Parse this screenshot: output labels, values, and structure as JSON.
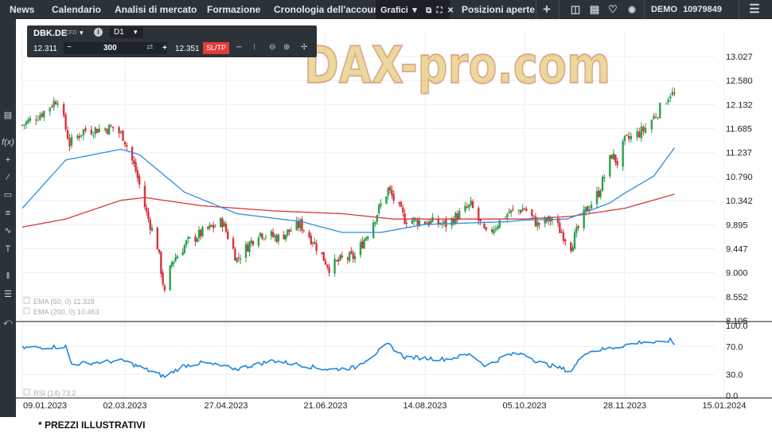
{
  "nav": {
    "tabs": [
      "News",
      "Calendario",
      "Analisi di mercato",
      "Formazione",
      "Cronologia dell'account",
      "Grafici",
      "Posizioni aperte"
    ],
    "active_tab": "Grafici",
    "account_mode": "DEMO",
    "account_number": "10979849"
  },
  "icons": {
    "tab_dropdown": "caret-down-icon",
    "tab_popout": "popout-icon",
    "tab_maximize": "maximize-icon",
    "tab_close": "close-icon",
    "add": "plus-icon",
    "layout": "layout-icon",
    "notebook": "book-icon",
    "notifications": "bell-icon",
    "connection": "wifi-icon",
    "menu": "hamburger-menu-icon"
  },
  "sidebar_tools": [
    "chart-type-icon",
    "function-icon",
    "crosshair-icon",
    "trendline-icon",
    "rectangle-icon",
    "fibonacci-icon",
    "brush-icon",
    "text-icon",
    "compare-icon",
    "layers-icon",
    "share-icon"
  ],
  "trade_panel": {
    "symbol": "DBK.DE",
    "instrument_type": "CFD",
    "timeframe": "D1",
    "bid": "12.311",
    "volume": "300",
    "ask": "12.351",
    "sltp_label": "SL/TP",
    "minus": "−",
    "plus": "+"
  },
  "watermark": "DAX-pro.com",
  "chart_data": {
    "type": "candlestick",
    "symbol": "DBK.DE",
    "timeframe": "D1",
    "y_ticks": [
      "13.027",
      "12.580",
      "12.132",
      "11.685",
      "11.237",
      "10.790",
      "10.342",
      "9.895",
      "9.447",
      "9.000",
      "8.552",
      "8.105"
    ],
    "ylim": [
      8.105,
      13.027
    ],
    "x_ticks": [
      "09.01.2023",
      "02.03.2023",
      "27.04.2023",
      "21.06.2023",
      "14.08.2023",
      "05.10.2023",
      "28.11.2023",
      "15.01.2024"
    ],
    "price_anchors": [
      {
        "date": "09.01.2023",
        "price": 11.75
      },
      {
        "date": "20.01.2023",
        "price": 12.0
      },
      {
        "date": "27.01.2023",
        "price": 12.25
      },
      {
        "date": "02.02.2023",
        "price": 11.4
      },
      {
        "date": "09.02.2023",
        "price": 11.65
      },
      {
        "date": "24.02.2023",
        "price": 11.7
      },
      {
        "date": "01.03.2023",
        "price": 11.55
      },
      {
        "date": "08.03.2023",
        "price": 10.9
      },
      {
        "date": "14.03.2023",
        "price": 10.1
      },
      {
        "date": "20.03.2023",
        "price": 9.5
      },
      {
        "date": "24.03.2023",
        "price": 8.6
      },
      {
        "date": "28.03.2023",
        "price": 9.2
      },
      {
        "date": "05.04.2023",
        "price": 9.55
      },
      {
        "date": "14.04.2023",
        "price": 9.75
      },
      {
        "date": "25.04.2023",
        "price": 9.95
      },
      {
        "date": "03.05.2023",
        "price": 9.25
      },
      {
        "date": "15.05.2023",
        "price": 9.75
      },
      {
        "date": "26.05.2023",
        "price": 9.65
      },
      {
        "date": "07.06.2023",
        "price": 9.9
      },
      {
        "date": "14.06.2023",
        "price": 9.6
      },
      {
        "date": "23.06.2023",
        "price": 9.1
      },
      {
        "date": "30.06.2023",
        "price": 9.25
      },
      {
        "date": "07.07.2023",
        "price": 9.3
      },
      {
        "date": "14.07.2023",
        "price": 9.75
      },
      {
        "date": "25.07.2023",
        "price": 10.55
      },
      {
        "date": "03.08.2023",
        "price": 10.0
      },
      {
        "date": "14.08.2023",
        "price": 9.95
      },
      {
        "date": "25.08.2023",
        "price": 9.9
      },
      {
        "date": "07.09.2023",
        "price": 10.25
      },
      {
        "date": "15.09.2023",
        "price": 9.7
      },
      {
        "date": "26.09.2023",
        "price": 10.1
      },
      {
        "date": "05.10.2023",
        "price": 10.2
      },
      {
        "date": "12.10.2023",
        "price": 9.9
      },
      {
        "date": "20.10.2023",
        "price": 10.0
      },
      {
        "date": "30.10.2023",
        "price": 9.5
      },
      {
        "date": "07.11.2023",
        "price": 10.15
      },
      {
        "date": "14.11.2023",
        "price": 10.5
      },
      {
        "date": "21.11.2023",
        "price": 11.2
      },
      {
        "date": "24.11.2023",
        "price": 11.05
      },
      {
        "date": "28.11.2023",
        "price": 11.45
      },
      {
        "date": "07.12.2023",
        "price": 11.65
      },
      {
        "date": "14.12.2023",
        "price": 12.0
      },
      {
        "date": "20.12.2023",
        "price": 12.35
      },
      {
        "date": "22.12.2023",
        "price": 12.3
      }
    ],
    "ema50_anchors": [
      {
        "date": "09.01.2023",
        "price": 10.2
      },
      {
        "date": "31.01.2023",
        "price": 11.1
      },
      {
        "date": "28.02.2023",
        "price": 11.3
      },
      {
        "date": "10.03.2023",
        "price": 11.2
      },
      {
        "date": "04.04.2023",
        "price": 10.5
      },
      {
        "date": "03.05.2023",
        "price": 10.1
      },
      {
        "date": "08.06.2023",
        "price": 9.95
      },
      {
        "date": "30.06.2023",
        "price": 9.75
      },
      {
        "date": "21.07.2023",
        "price": 9.75
      },
      {
        "date": "14.08.2023",
        "price": 9.9
      },
      {
        "date": "26.09.2023",
        "price": 9.95
      },
      {
        "date": "05.10.2023",
        "price": 9.98
      },
      {
        "date": "28.10.2023",
        "price": 10.0
      },
      {
        "date": "20.11.2023",
        "price": 10.3
      },
      {
        "date": "12.12.2023",
        "price": 10.8
      },
      {
        "date": "22.12.2023",
        "price": 11.328
      }
    ],
    "ema200_anchors": [
      {
        "date": "09.01.2023",
        "price": 9.85
      },
      {
        "date": "31.01.2023",
        "price": 10.0
      },
      {
        "date": "28.02.2023",
        "price": 10.35
      },
      {
        "date": "13.03.2023",
        "price": 10.4
      },
      {
        "date": "13.04.2023",
        "price": 10.25
      },
      {
        "date": "24.05.2023",
        "price": 10.15
      },
      {
        "date": "30.06.2023",
        "price": 10.1
      },
      {
        "date": "28.07.2023",
        "price": 10.0
      },
      {
        "date": "14.08.2023",
        "price": 10.0
      },
      {
        "date": "05.10.2023",
        "price": 10.0
      },
      {
        "date": "30.10.2023",
        "price": 10.05
      },
      {
        "date": "28.11.2023",
        "price": 10.2
      },
      {
        "date": "22.12.2023",
        "price": 10.463
      }
    ],
    "rsi": {
      "label": "RSI (14) 73.2",
      "y_ticks": [
        "100.0",
        "70.0",
        "30.0",
        "0.0"
      ],
      "ylim": [
        0,
        100
      ],
      "anchors": [
        {
          "date": "09.01.2023",
          "value": 68
        },
        {
          "date": "31.01.2023",
          "value": 70
        },
        {
          "date": "03.02.2023",
          "value": 45
        },
        {
          "date": "01.03.2023",
          "value": 50
        },
        {
          "date": "24.03.2023",
          "value": 27
        },
        {
          "date": "03.04.2023",
          "value": 42
        },
        {
          "date": "14.04.2023",
          "value": 47
        },
        {
          "date": "03.05.2023",
          "value": 38
        },
        {
          "date": "23.05.2023",
          "value": 50
        },
        {
          "date": "23.06.2023",
          "value": 37
        },
        {
          "date": "07.07.2023",
          "value": 40
        },
        {
          "date": "25.07.2023",
          "value": 73
        },
        {
          "date": "03.08.2023",
          "value": 55
        },
        {
          "date": "25.08.2023",
          "value": 52
        },
        {
          "date": "07.09.2023",
          "value": 59
        },
        {
          "date": "15.09.2023",
          "value": 42
        },
        {
          "date": "26.09.2023",
          "value": 58
        },
        {
          "date": "05.10.2023",
          "value": 60
        },
        {
          "date": "12.10.2023",
          "value": 48
        },
        {
          "date": "30.10.2023",
          "value": 35
        },
        {
          "date": "07.11.2023",
          "value": 62
        },
        {
          "date": "21.11.2023",
          "value": 68
        },
        {
          "date": "28.11.2023",
          "value": 72
        },
        {
          "date": "07.12.2023",
          "value": 77
        },
        {
          "date": "14.12.2023",
          "value": 75
        },
        {
          "date": "20.12.2023",
          "value": 79
        },
        {
          "date": "22.12.2023",
          "value": 73.2
        }
      ]
    },
    "legend": [
      {
        "label": "EMA (50, 0) 11.328",
        "color": "#2b8fe0"
      },
      {
        "label": "EMA (200, 0) 10.463",
        "color": "#d63a3a"
      }
    ],
    "colors": {
      "up": "#2aa24e",
      "down": "#d6343c",
      "ema50": "#2b8fe0",
      "ema200": "#d63a3a",
      "rsi": "#1f86db"
    }
  },
  "footer": {
    "note": "* PREZZI ILLUSTRATIVI"
  }
}
